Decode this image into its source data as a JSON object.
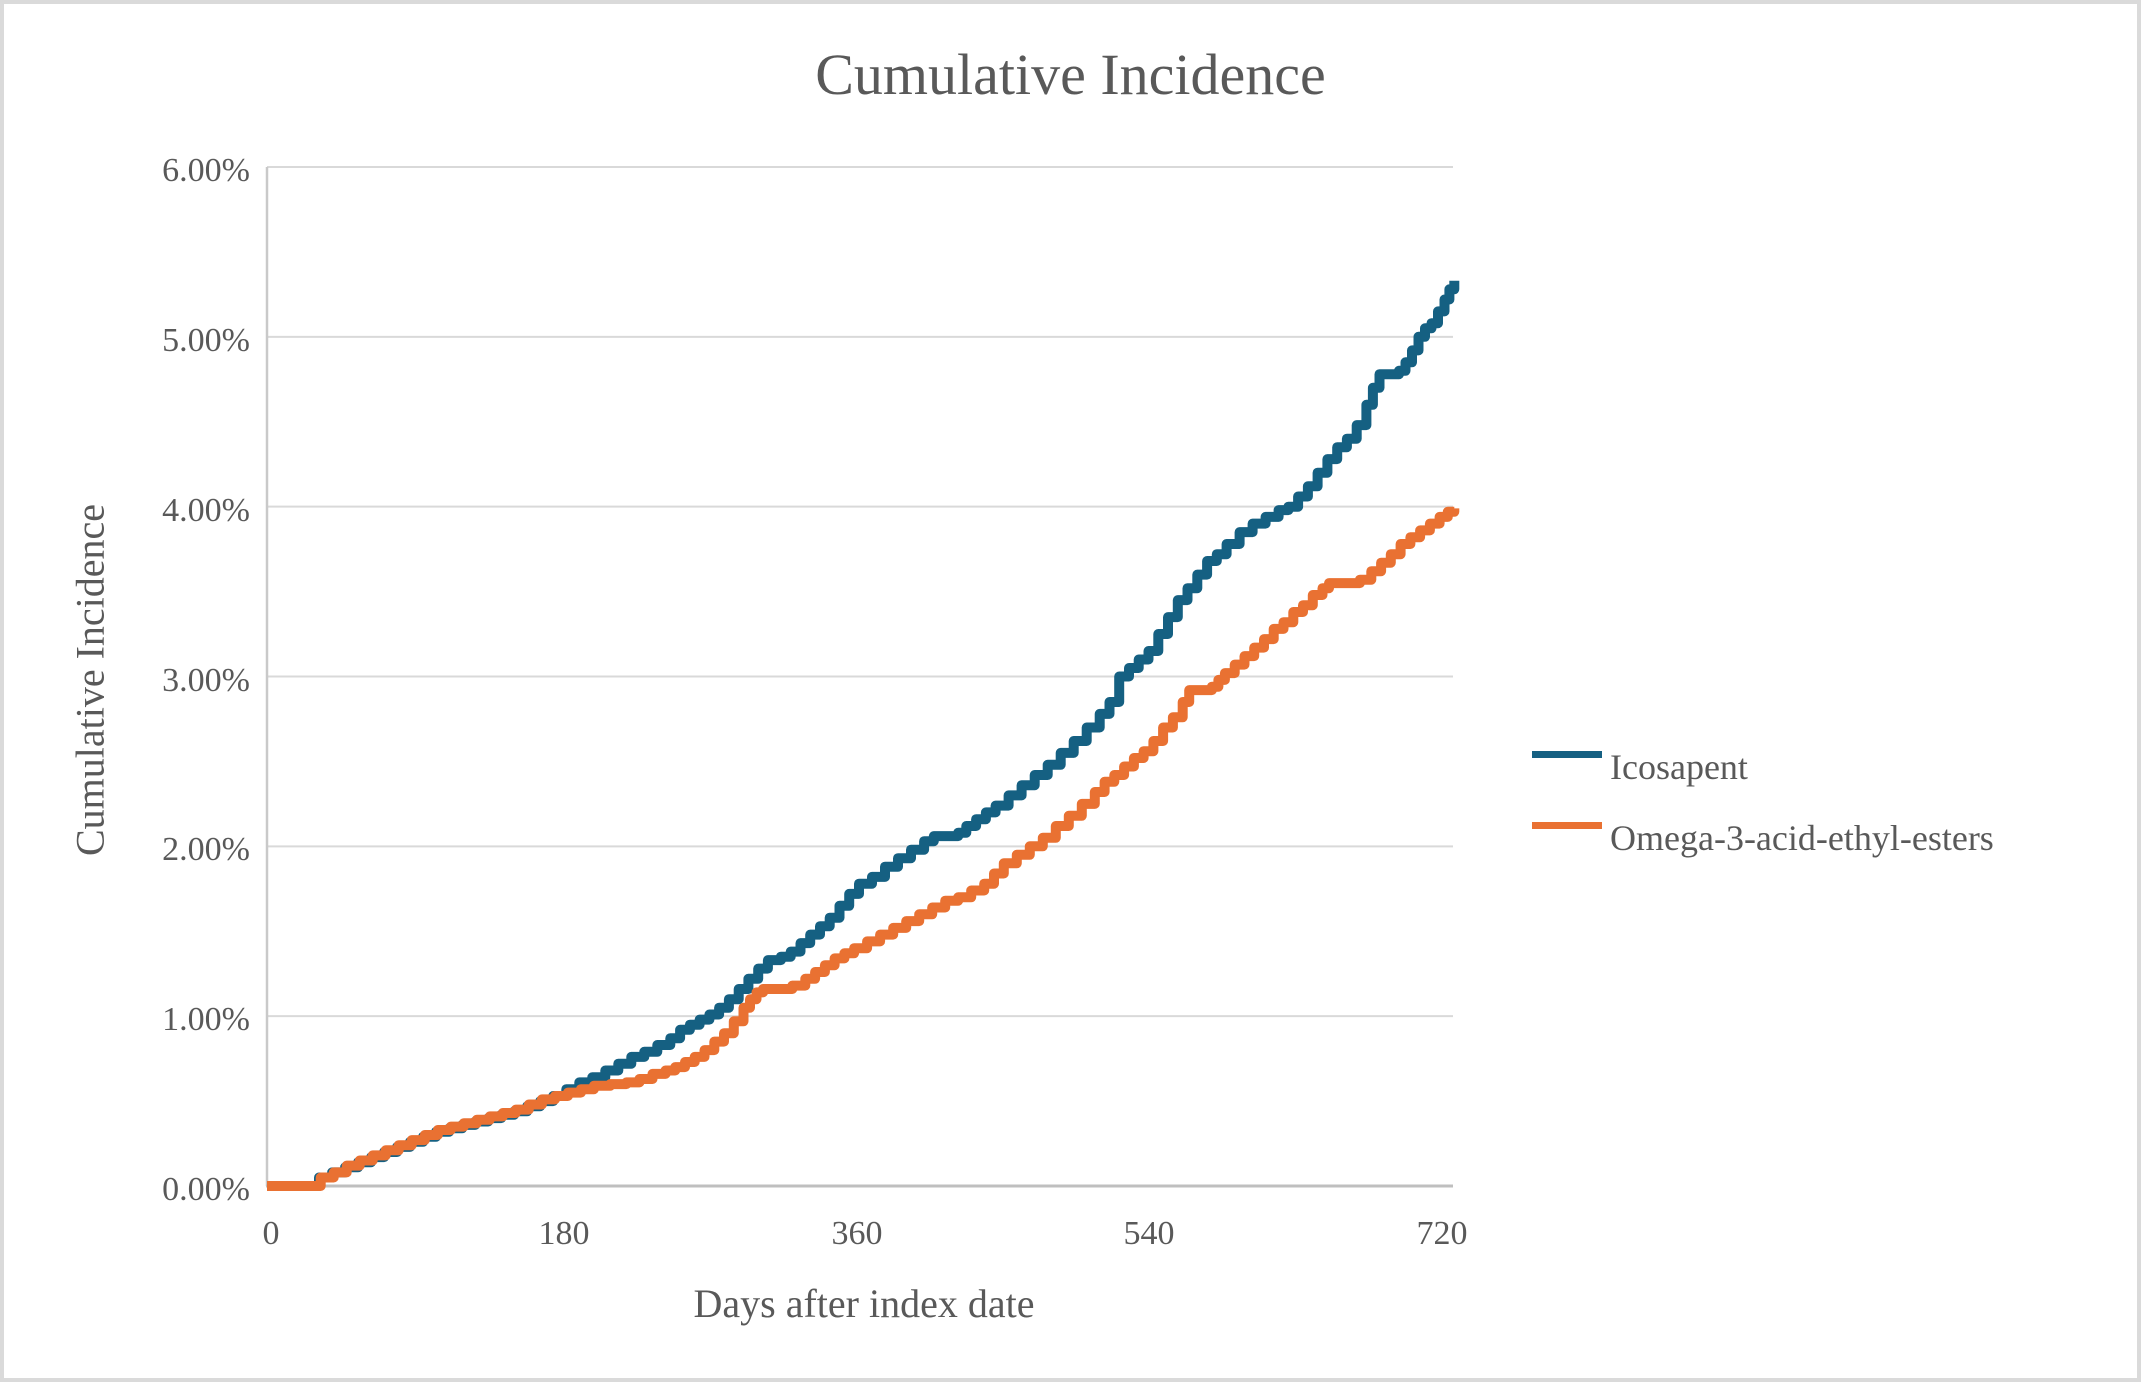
{
  "window": {
    "background": "#FFFFFF",
    "border_color": "#DADADA"
  },
  "chart_data": {
    "type": "line",
    "subtype": "step",
    "title": "Cumulative Incidence",
    "xlabel": "Days after index date",
    "ylabel": "Cumulative Incidence",
    "xlim_days": [
      0,
      730
    ],
    "ylim_percent": [
      0,
      6
    ],
    "grid": "horizontal",
    "legend_position": "right",
    "text_color": "#595959",
    "gridline_color": "#D9D9D9",
    "axis_line_color": "#BFBFBF",
    "plot_left_border_color": "#C9C9C9",
    "x_ticks": [
      "0",
      "180",
      "360",
      "540",
      "720"
    ],
    "x_tick_values": [
      0,
      180,
      360,
      540,
      720
    ],
    "y_ticks": [
      "0.00%",
      "1.00%",
      "2.00%",
      "3.00%",
      "4.00%",
      "5.00%",
      "6.00%"
    ],
    "series": [
      {
        "name": "Icosapent",
        "color": "#156082",
        "points_day_percent": [
          [
            0,
            0
          ],
          [
            30,
            0
          ],
          [
            32,
            0.05
          ],
          [
            40,
            0.08
          ],
          [
            48,
            0.11
          ],
          [
            56,
            0.14
          ],
          [
            64,
            0.17
          ],
          [
            72,
            0.2
          ],
          [
            80,
            0.23
          ],
          [
            88,
            0.26
          ],
          [
            96,
            0.29
          ],
          [
            104,
            0.32
          ],
          [
            112,
            0.34
          ],
          [
            120,
            0.36
          ],
          [
            128,
            0.38
          ],
          [
            136,
            0.4
          ],
          [
            144,
            0.42
          ],
          [
            152,
            0.44
          ],
          [
            160,
            0.47
          ],
          [
            168,
            0.5
          ],
          [
            176,
            0.53
          ],
          [
            184,
            0.57
          ],
          [
            192,
            0.61
          ],
          [
            200,
            0.64
          ],
          [
            208,
            0.68
          ],
          [
            216,
            0.72
          ],
          [
            224,
            0.76
          ],
          [
            232,
            0.79
          ],
          [
            240,
            0.83
          ],
          [
            248,
            0.87
          ],
          [
            254,
            0.92
          ],
          [
            260,
            0.95
          ],
          [
            266,
            0.98
          ],
          [
            272,
            1.01
          ],
          [
            278,
            1.05
          ],
          [
            284,
            1.1
          ],
          [
            290,
            1.16
          ],
          [
            296,
            1.22
          ],
          [
            302,
            1.28
          ],
          [
            308,
            1.33
          ],
          [
            316,
            1.35
          ],
          [
            322,
            1.38
          ],
          [
            328,
            1.43
          ],
          [
            334,
            1.48
          ],
          [
            340,
            1.53
          ],
          [
            346,
            1.58
          ],
          [
            352,
            1.65
          ],
          [
            358,
            1.72
          ],
          [
            364,
            1.78
          ],
          [
            372,
            1.82
          ],
          [
            380,
            1.88
          ],
          [
            388,
            1.93
          ],
          [
            396,
            1.98
          ],
          [
            404,
            2.03
          ],
          [
            410,
            2.06
          ],
          [
            425,
            2.08
          ],
          [
            430,
            2.12
          ],
          [
            436,
            2.16
          ],
          [
            442,
            2.2
          ],
          [
            448,
            2.24
          ],
          [
            456,
            2.3
          ],
          [
            464,
            2.36
          ],
          [
            472,
            2.42
          ],
          [
            480,
            2.48
          ],
          [
            488,
            2.55
          ],
          [
            496,
            2.62
          ],
          [
            504,
            2.7
          ],
          [
            512,
            2.78
          ],
          [
            518,
            2.85
          ],
          [
            524,
            3.0
          ],
          [
            530,
            3.05
          ],
          [
            536,
            3.1
          ],
          [
            542,
            3.15
          ],
          [
            548,
            3.25
          ],
          [
            554,
            3.35
          ],
          [
            560,
            3.45
          ],
          [
            566,
            3.52
          ],
          [
            572,
            3.6
          ],
          [
            578,
            3.68
          ],
          [
            584,
            3.72
          ],
          [
            590,
            3.78
          ],
          [
            598,
            3.85
          ],
          [
            606,
            3.9
          ],
          [
            614,
            3.94
          ],
          [
            622,
            3.98
          ],
          [
            628,
            4.0
          ],
          [
            634,
            4.06
          ],
          [
            640,
            4.12
          ],
          [
            646,
            4.2
          ],
          [
            652,
            4.28
          ],
          [
            658,
            4.35
          ],
          [
            664,
            4.4
          ],
          [
            670,
            4.48
          ],
          [
            676,
            4.6
          ],
          [
            680,
            4.7
          ],
          [
            684,
            4.78
          ],
          [
            696,
            4.8
          ],
          [
            700,
            4.85
          ],
          [
            704,
            4.92
          ],
          [
            708,
            5.0
          ],
          [
            712,
            5.05
          ],
          [
            716,
            5.08
          ],
          [
            720,
            5.15
          ],
          [
            724,
            5.22
          ],
          [
            727,
            5.28
          ],
          [
            730,
            5.33
          ]
        ]
      },
      {
        "name": "Omega-3-acid-ethyl-esters",
        "color": "#E97132",
        "points_day_percent": [
          [
            0,
            0
          ],
          [
            31,
            0
          ],
          [
            33,
            0.05
          ],
          [
            41,
            0.08
          ],
          [
            49,
            0.12
          ],
          [
            57,
            0.15
          ],
          [
            65,
            0.18
          ],
          [
            73,
            0.21
          ],
          [
            81,
            0.24
          ],
          [
            89,
            0.27
          ],
          [
            97,
            0.3
          ],
          [
            105,
            0.33
          ],
          [
            113,
            0.35
          ],
          [
            121,
            0.37
          ],
          [
            129,
            0.39
          ],
          [
            137,
            0.41
          ],
          [
            145,
            0.43
          ],
          [
            153,
            0.45
          ],
          [
            161,
            0.48
          ],
          [
            169,
            0.51
          ],
          [
            177,
            0.53
          ],
          [
            185,
            0.55
          ],
          [
            193,
            0.57
          ],
          [
            201,
            0.59
          ],
          [
            211,
            0.6
          ],
          [
            221,
            0.61
          ],
          [
            229,
            0.63
          ],
          [
            237,
            0.66
          ],
          [
            245,
            0.68
          ],
          [
            251,
            0.7
          ],
          [
            257,
            0.73
          ],
          [
            263,
            0.76
          ],
          [
            269,
            0.8
          ],
          [
            275,
            0.85
          ],
          [
            281,
            0.9
          ],
          [
            287,
            0.97
          ],
          [
            293,
            1.05
          ],
          [
            297,
            1.1
          ],
          [
            301,
            1.14
          ],
          [
            305,
            1.16
          ],
          [
            323,
            1.18
          ],
          [
            331,
            1.22
          ],
          [
            337,
            1.26
          ],
          [
            343,
            1.3
          ],
          [
            349,
            1.34
          ],
          [
            355,
            1.37
          ],
          [
            361,
            1.4
          ],
          [
            369,
            1.44
          ],
          [
            377,
            1.48
          ],
          [
            385,
            1.52
          ],
          [
            393,
            1.56
          ],
          [
            401,
            1.6
          ],
          [
            409,
            1.64
          ],
          [
            417,
            1.68
          ],
          [
            425,
            1.7
          ],
          [
            433,
            1.74
          ],
          [
            441,
            1.78
          ],
          [
            447,
            1.84
          ],
          [
            453,
            1.9
          ],
          [
            461,
            1.95
          ],
          [
            469,
            2.0
          ],
          [
            477,
            2.05
          ],
          [
            485,
            2.12
          ],
          [
            493,
            2.18
          ],
          [
            501,
            2.25
          ],
          [
            509,
            2.32
          ],
          [
            515,
            2.38
          ],
          [
            521,
            2.42
          ],
          [
            527,
            2.47
          ],
          [
            533,
            2.52
          ],
          [
            539,
            2.56
          ],
          [
            545,
            2.62
          ],
          [
            551,
            2.7
          ],
          [
            557,
            2.76
          ],
          [
            563,
            2.85
          ],
          [
            567,
            2.92
          ],
          [
            581,
            2.94
          ],
          [
            585,
            2.98
          ],
          [
            589,
            3.02
          ],
          [
            595,
            3.07
          ],
          [
            601,
            3.12
          ],
          [
            607,
            3.17
          ],
          [
            613,
            3.22
          ],
          [
            619,
            3.28
          ],
          [
            625,
            3.32
          ],
          [
            631,
            3.38
          ],
          [
            637,
            3.42
          ],
          [
            643,
            3.48
          ],
          [
            649,
            3.52
          ],
          [
            653,
            3.55
          ],
          [
            672,
            3.57
          ],
          [
            679,
            3.62
          ],
          [
            685,
            3.67
          ],
          [
            691,
            3.72
          ],
          [
            697,
            3.78
          ],
          [
            703,
            3.82
          ],
          [
            709,
            3.86
          ],
          [
            715,
            3.9
          ],
          [
            721,
            3.94
          ],
          [
            726,
            3.97
          ],
          [
            730,
            3.99
          ]
        ]
      }
    ]
  }
}
